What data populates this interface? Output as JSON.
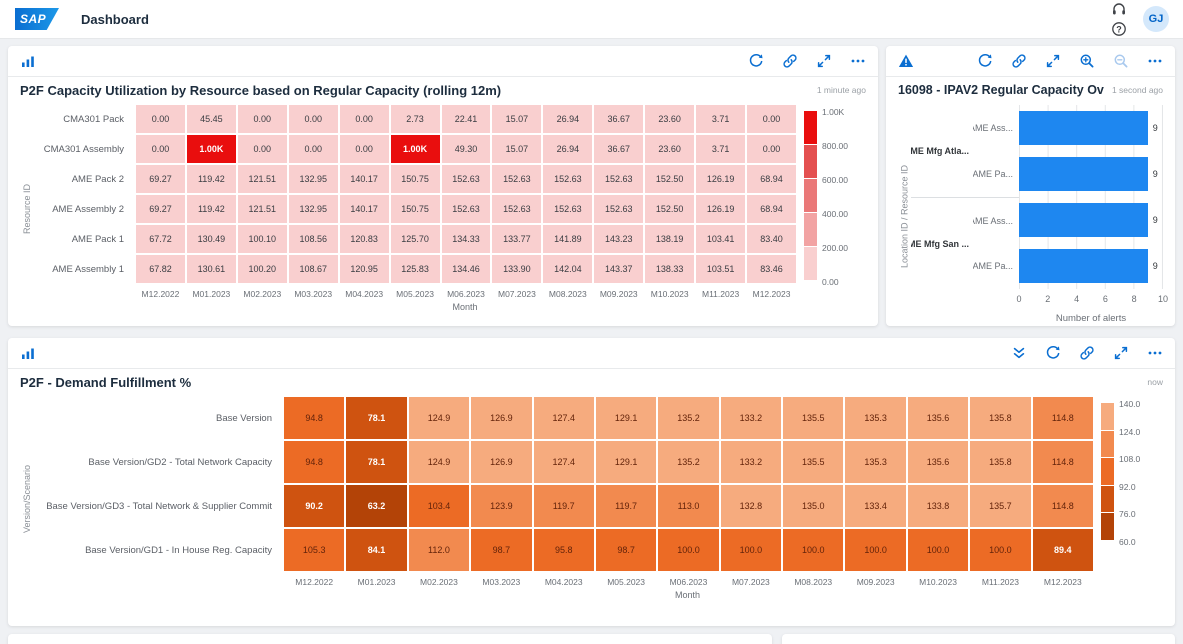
{
  "header": {
    "title": "Dashboard",
    "avatar": "GJ",
    "icons": [
      {
        "icon": "headset"
      },
      {
        "icon": "help"
      }
    ]
  },
  "panels": {
    "capacity": {
      "title": "P2F Capacity Utilization by Resource based on Regular Capacity (rolling 12m)",
      "timestamp": "1 minute ago",
      "toolbar_left": [
        {
          "icon": "chart"
        }
      ],
      "toolbar_right": [
        {
          "icon": "refresh"
        },
        {
          "icon": "link"
        },
        {
          "icon": "fullscreen"
        },
        {
          "icon": "more"
        }
      ],
      "chart_data": {
        "type": "heatmap",
        "xlabel": "Month",
        "ylabel": "Resource ID",
        "columns": [
          "M12.2022",
          "M01.2023",
          "M02.2023",
          "M03.2023",
          "M04.2023",
          "M05.2023",
          "M06.2023",
          "M07.2023",
          "M08.2023",
          "M09.2023",
          "M10.2023",
          "M11.2023",
          "M12.2023"
        ],
        "rows": [
          "CMA301 Pack",
          "CMA301 Assembly",
          "AME Pack 2",
          "AME Assembly 2",
          "AME Pack 1",
          "AME Assembly 1"
        ],
        "values": [
          [
            "0.00",
            "45.45",
            "0.00",
            "0.00",
            "0.00",
            "2.73",
            "22.41",
            "15.07",
            "26.94",
            "36.67",
            "23.60",
            "3.71",
            "0.00"
          ],
          [
            "0.00",
            "1.00K",
            "0.00",
            "0.00",
            "0.00",
            "1.00K",
            "49.30",
            "15.07",
            "26.94",
            "36.67",
            "23.60",
            "3.71",
            "0.00"
          ],
          [
            "69.27",
            "119.42",
            "121.51",
            "132.95",
            "140.17",
            "150.75",
            "152.63",
            "152.63",
            "152.63",
            "152.63",
            "152.50",
            "126.19",
            "68.94"
          ],
          [
            "69.27",
            "119.42",
            "121.51",
            "132.95",
            "140.17",
            "150.75",
            "152.63",
            "152.63",
            "152.63",
            "152.63",
            "152.50",
            "126.19",
            "68.94"
          ],
          [
            "67.72",
            "130.49",
            "100.10",
            "108.56",
            "120.83",
            "125.70",
            "134.33",
            "133.77",
            "141.89",
            "143.23",
            "138.19",
            "103.41",
            "83.40"
          ],
          [
            "67.82",
            "130.61",
            "100.20",
            "108.67",
            "120.95",
            "125.83",
            "134.46",
            "133.90",
            "142.04",
            "143.37",
            "138.33",
            "103.51",
            "83.46"
          ]
        ],
        "scale": {
          "min": 0,
          "max": 1000,
          "colors": [
            "#f9cfcf",
            "#f2a3a3",
            "#ea7878",
            "#e45050",
            "#e90e0e"
          ],
          "white_text_buckets": [
            4
          ],
          "dark_text": "#3a3d42",
          "legend_labels": [
            "1.00K",
            "800.00",
            "600.00",
            "400.00",
            "200.00",
            "0.00"
          ]
        }
      }
    },
    "overload": {
      "title": "16098 - IPAV2 Regular Capacity Overload",
      "timestamp": "1 second ago",
      "toolbar_left": [
        {
          "icon": "alert"
        }
      ],
      "toolbar_right": [
        {
          "icon": "refresh"
        },
        {
          "icon": "link"
        },
        {
          "icon": "fullscreen"
        },
        {
          "icon": "zoom-in"
        },
        {
          "icon": "zoom-out",
          "disabled": true
        },
        {
          "icon": "more"
        }
      ],
      "chart_data": {
        "type": "bar",
        "orientation": "horizontal",
        "xlabel": "Number of alerts",
        "ylabel": "Location ID / Resource ID",
        "xlim": [
          0,
          10
        ],
        "xticks": [
          0,
          2,
          4,
          6,
          8,
          10
        ],
        "bar_color": "#1e87f0",
        "groups": [
          {
            "label": "AME Mfg Atla...",
            "bars": [
              {
                "label": "AME Ass...",
                "value": 9
              },
              {
                "label": "AME Pa...",
                "value": 9
              }
            ]
          },
          {
            "label": "AME Mfg San ...",
            "bars": [
              {
                "label": "AME Ass...",
                "value": 9
              },
              {
                "label": "AME Pa...",
                "value": 9
              }
            ]
          }
        ]
      }
    },
    "fulfillment": {
      "title": "P2F - Demand Fulfillment %",
      "timestamp": "now",
      "toolbar_left": [
        {
          "icon": "chart"
        }
      ],
      "toolbar_right": [
        {
          "icon": "collapse"
        },
        {
          "icon": "refresh"
        },
        {
          "icon": "link"
        },
        {
          "icon": "fullscreen"
        },
        {
          "icon": "more"
        }
      ],
      "chart_data": {
        "type": "heatmap",
        "xlabel": "Month",
        "ylabel": "Version/Scenario",
        "columns": [
          "M12.2022",
          "M01.2023",
          "M02.2023",
          "M03.2023",
          "M04.2023",
          "M05.2023",
          "M06.2023",
          "M07.2023",
          "M08.2023",
          "M09.2023",
          "M10.2023",
          "M11.2023",
          "M12.2023"
        ],
        "rows": [
          "Base Version",
          "Base Version/GD2 - Total Network Capacity",
          "Base Version/GD3 - Total Network & Supplier Commit",
          "Base Version/GD1 - In House Reg. Capacity"
        ],
        "values": [
          [
            "94.8",
            "78.1",
            "124.9",
            "126.9",
            "127.4",
            "129.1",
            "135.2",
            "133.2",
            "135.5",
            "135.3",
            "135.6",
            "135.8",
            "114.8"
          ],
          [
            "94.8",
            "78.1",
            "124.9",
            "126.9",
            "127.4",
            "129.1",
            "135.2",
            "133.2",
            "135.5",
            "135.3",
            "135.6",
            "135.8",
            "114.8"
          ],
          [
            "90.2",
            "63.2",
            "103.4",
            "123.9",
            "119.7",
            "119.7",
            "113.0",
            "132.8",
            "135.0",
            "133.4",
            "133.8",
            "135.7",
            "114.8"
          ],
          [
            "105.3",
            "84.1",
            "112.0",
            "98.7",
            "95.8",
            "98.7",
            "100.0",
            "100.0",
            "100.0",
            "100.0",
            "100.0",
            "100.0",
            "89.4"
          ]
        ],
        "scale": {
          "min": 60,
          "max": 140,
          "colors": [
            "#b34307",
            "#cf5310",
            "#ec6b25",
            "#f28a4f",
            "#f6ab7e"
          ],
          "white_text_buckets": [
            0,
            1
          ],
          "dark_text": "#63230a",
          "legend_labels": [
            "140.0",
            "124.0",
            "108.0",
            "92.0",
            "76.0",
            "60.0"
          ]
        }
      }
    }
  }
}
